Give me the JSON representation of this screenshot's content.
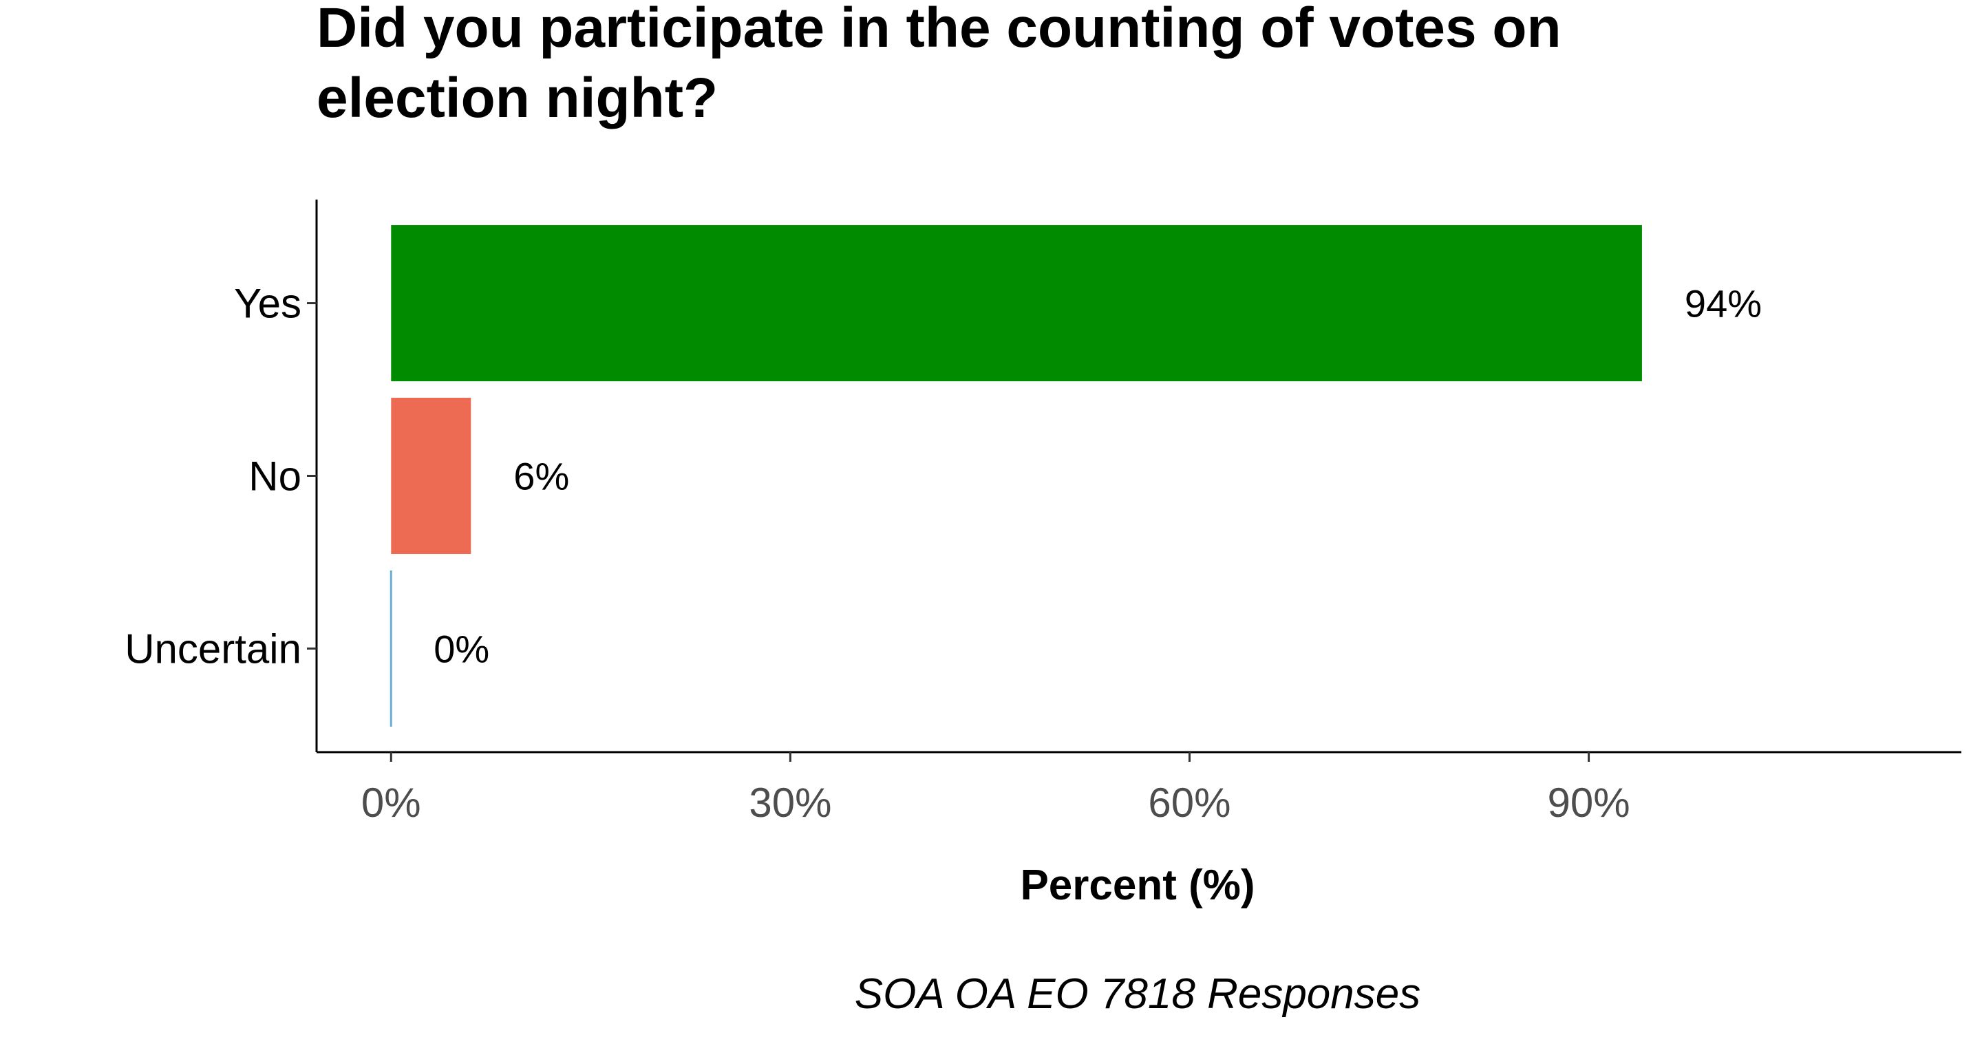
{
  "chart_data": {
    "type": "bar",
    "orientation": "horizontal",
    "title": "Did you participate in the counting of votes on election night?",
    "title_lines": [
      "Did you participate in the counting of votes on",
      "election night?"
    ],
    "categories": [
      "Yes",
      "No",
      "Uncertain"
    ],
    "values": [
      94,
      6,
      0
    ],
    "value_labels": [
      "94%",
      "6%",
      "0%"
    ],
    "colors": [
      "#008b00",
      "#ee6b53",
      "#6baed6"
    ],
    "xlabel": "Percent (%)",
    "ylabel": "",
    "caption": "SOA OA EO 7818 Responses",
    "xlim": [
      -5.6,
      118
    ],
    "xticks": [
      0,
      30,
      60,
      90
    ],
    "xtick_labels": [
      "0%",
      "30%",
      "60%",
      "90%"
    ],
    "grid": false,
    "legend": "none"
  }
}
